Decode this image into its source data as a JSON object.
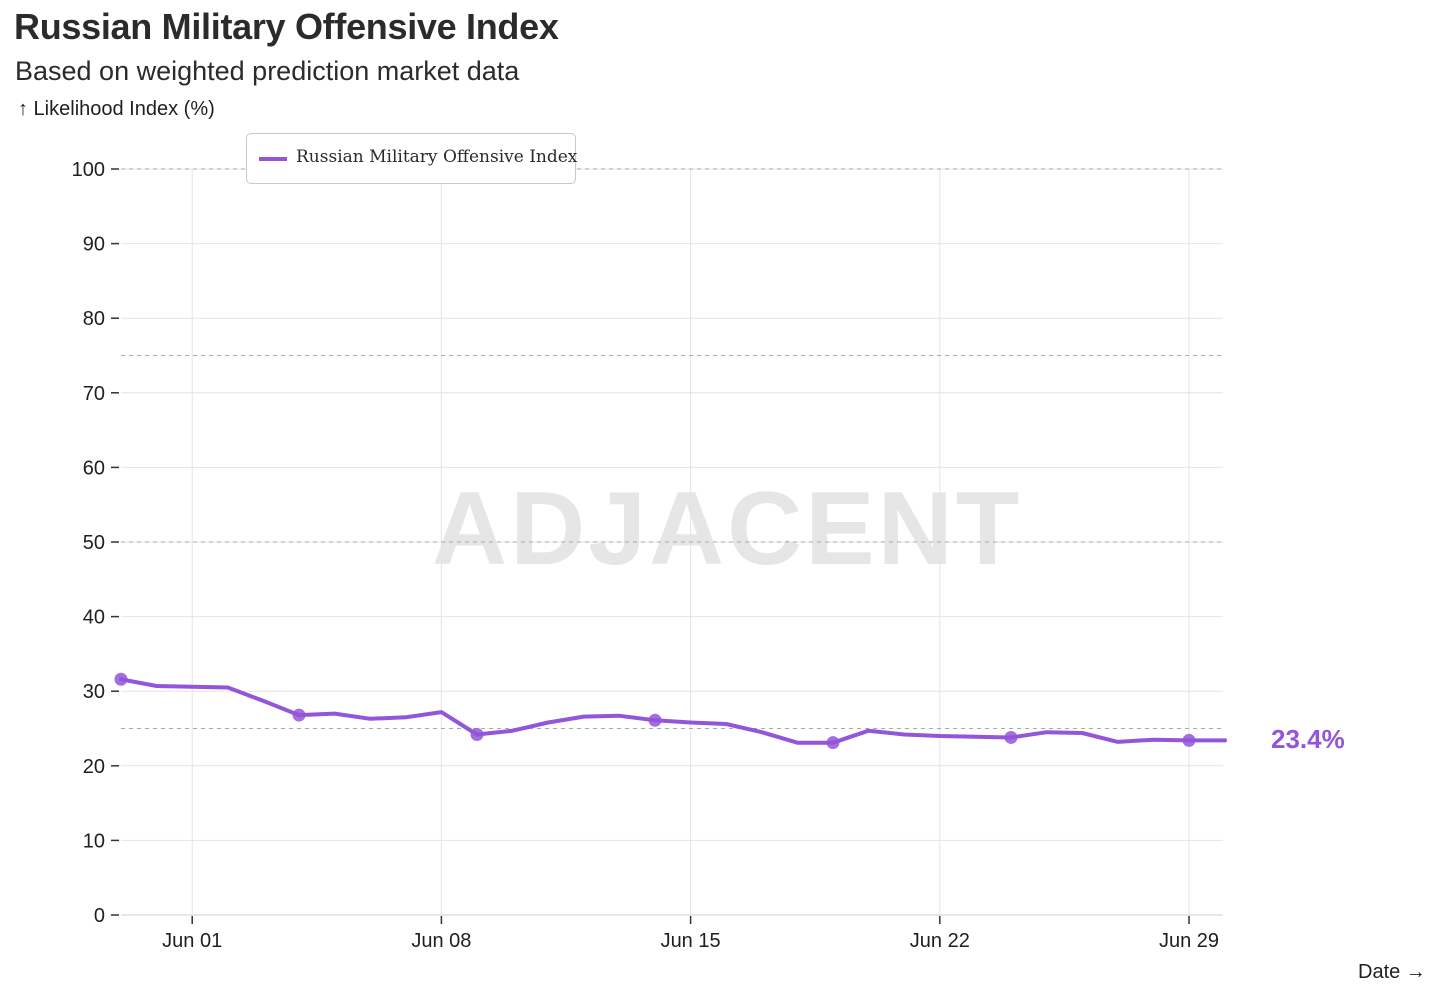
{
  "chart_data": {
    "type": "line",
    "title": "Russian Military Offensive Index",
    "subtitle": "Based on weighted prediction market data",
    "ylabel": "↑ Likelihood Index (%)",
    "xlabel": "Date →",
    "ylim": [
      0,
      100
    ],
    "y_ticks": [
      0,
      10,
      20,
      30,
      40,
      50,
      60,
      70,
      80,
      90,
      100
    ],
    "x_tick_labels": [
      "Jun 01",
      "Jun 08",
      "Jun 15",
      "Jun 22",
      "Jun 29"
    ],
    "reference_lines": [
      25,
      50,
      75,
      100
    ],
    "watermark": "ADJACENT",
    "legend_position": "top-left",
    "grid": true,
    "last_value_label": "23.4%",
    "series": [
      {
        "name": "Russian Military Offensive Index",
        "color": "#9355d9",
        "x": [
          "May 30",
          "May 31",
          "Jun 01",
          "Jun 02",
          "Jun 03",
          "Jun 04",
          "Jun 05",
          "Jun 06",
          "Jun 07",
          "Jun 08",
          "Jun 09",
          "Jun 10",
          "Jun 11",
          "Jun 12",
          "Jun 13",
          "Jun 14",
          "Jun 15",
          "Jun 16",
          "Jun 17",
          "Jun 18",
          "Jun 19",
          "Jun 20",
          "Jun 21",
          "Jun 22",
          "Jun 23",
          "Jun 24",
          "Jun 25",
          "Jun 26",
          "Jun 27",
          "Jun 28",
          "Jun 29",
          "Jun 30"
        ],
        "values": [
          31.6,
          30.7,
          30.6,
          30.5,
          28.7,
          26.8,
          27.0,
          26.3,
          26.5,
          27.2,
          24.2,
          24.7,
          25.8,
          26.6,
          26.7,
          26.1,
          25.8,
          25.6,
          24.5,
          23.1,
          23.1,
          24.7,
          24.2,
          24.0,
          23.9,
          23.8,
          24.5,
          24.4,
          23.2,
          23.5,
          23.4,
          23.4
        ],
        "markers": [
          "May 30",
          "Jun 04",
          "Jun 09",
          "Jun 14",
          "Jun 19",
          "Jun 24",
          "Jun 29"
        ]
      }
    ]
  }
}
